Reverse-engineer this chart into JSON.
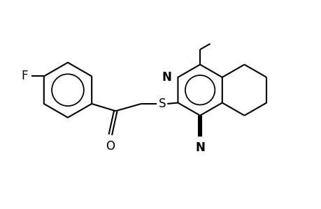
{
  "background_color": "#ffffff",
  "line_color": "#000000",
  "line_width": 1.5,
  "label_fontsize": 12,
  "fig_width": 4.6,
  "fig_height": 3.0,
  "dpi": 100,
  "xlim": [
    0,
    11
  ],
  "ylim": [
    0,
    7
  ]
}
